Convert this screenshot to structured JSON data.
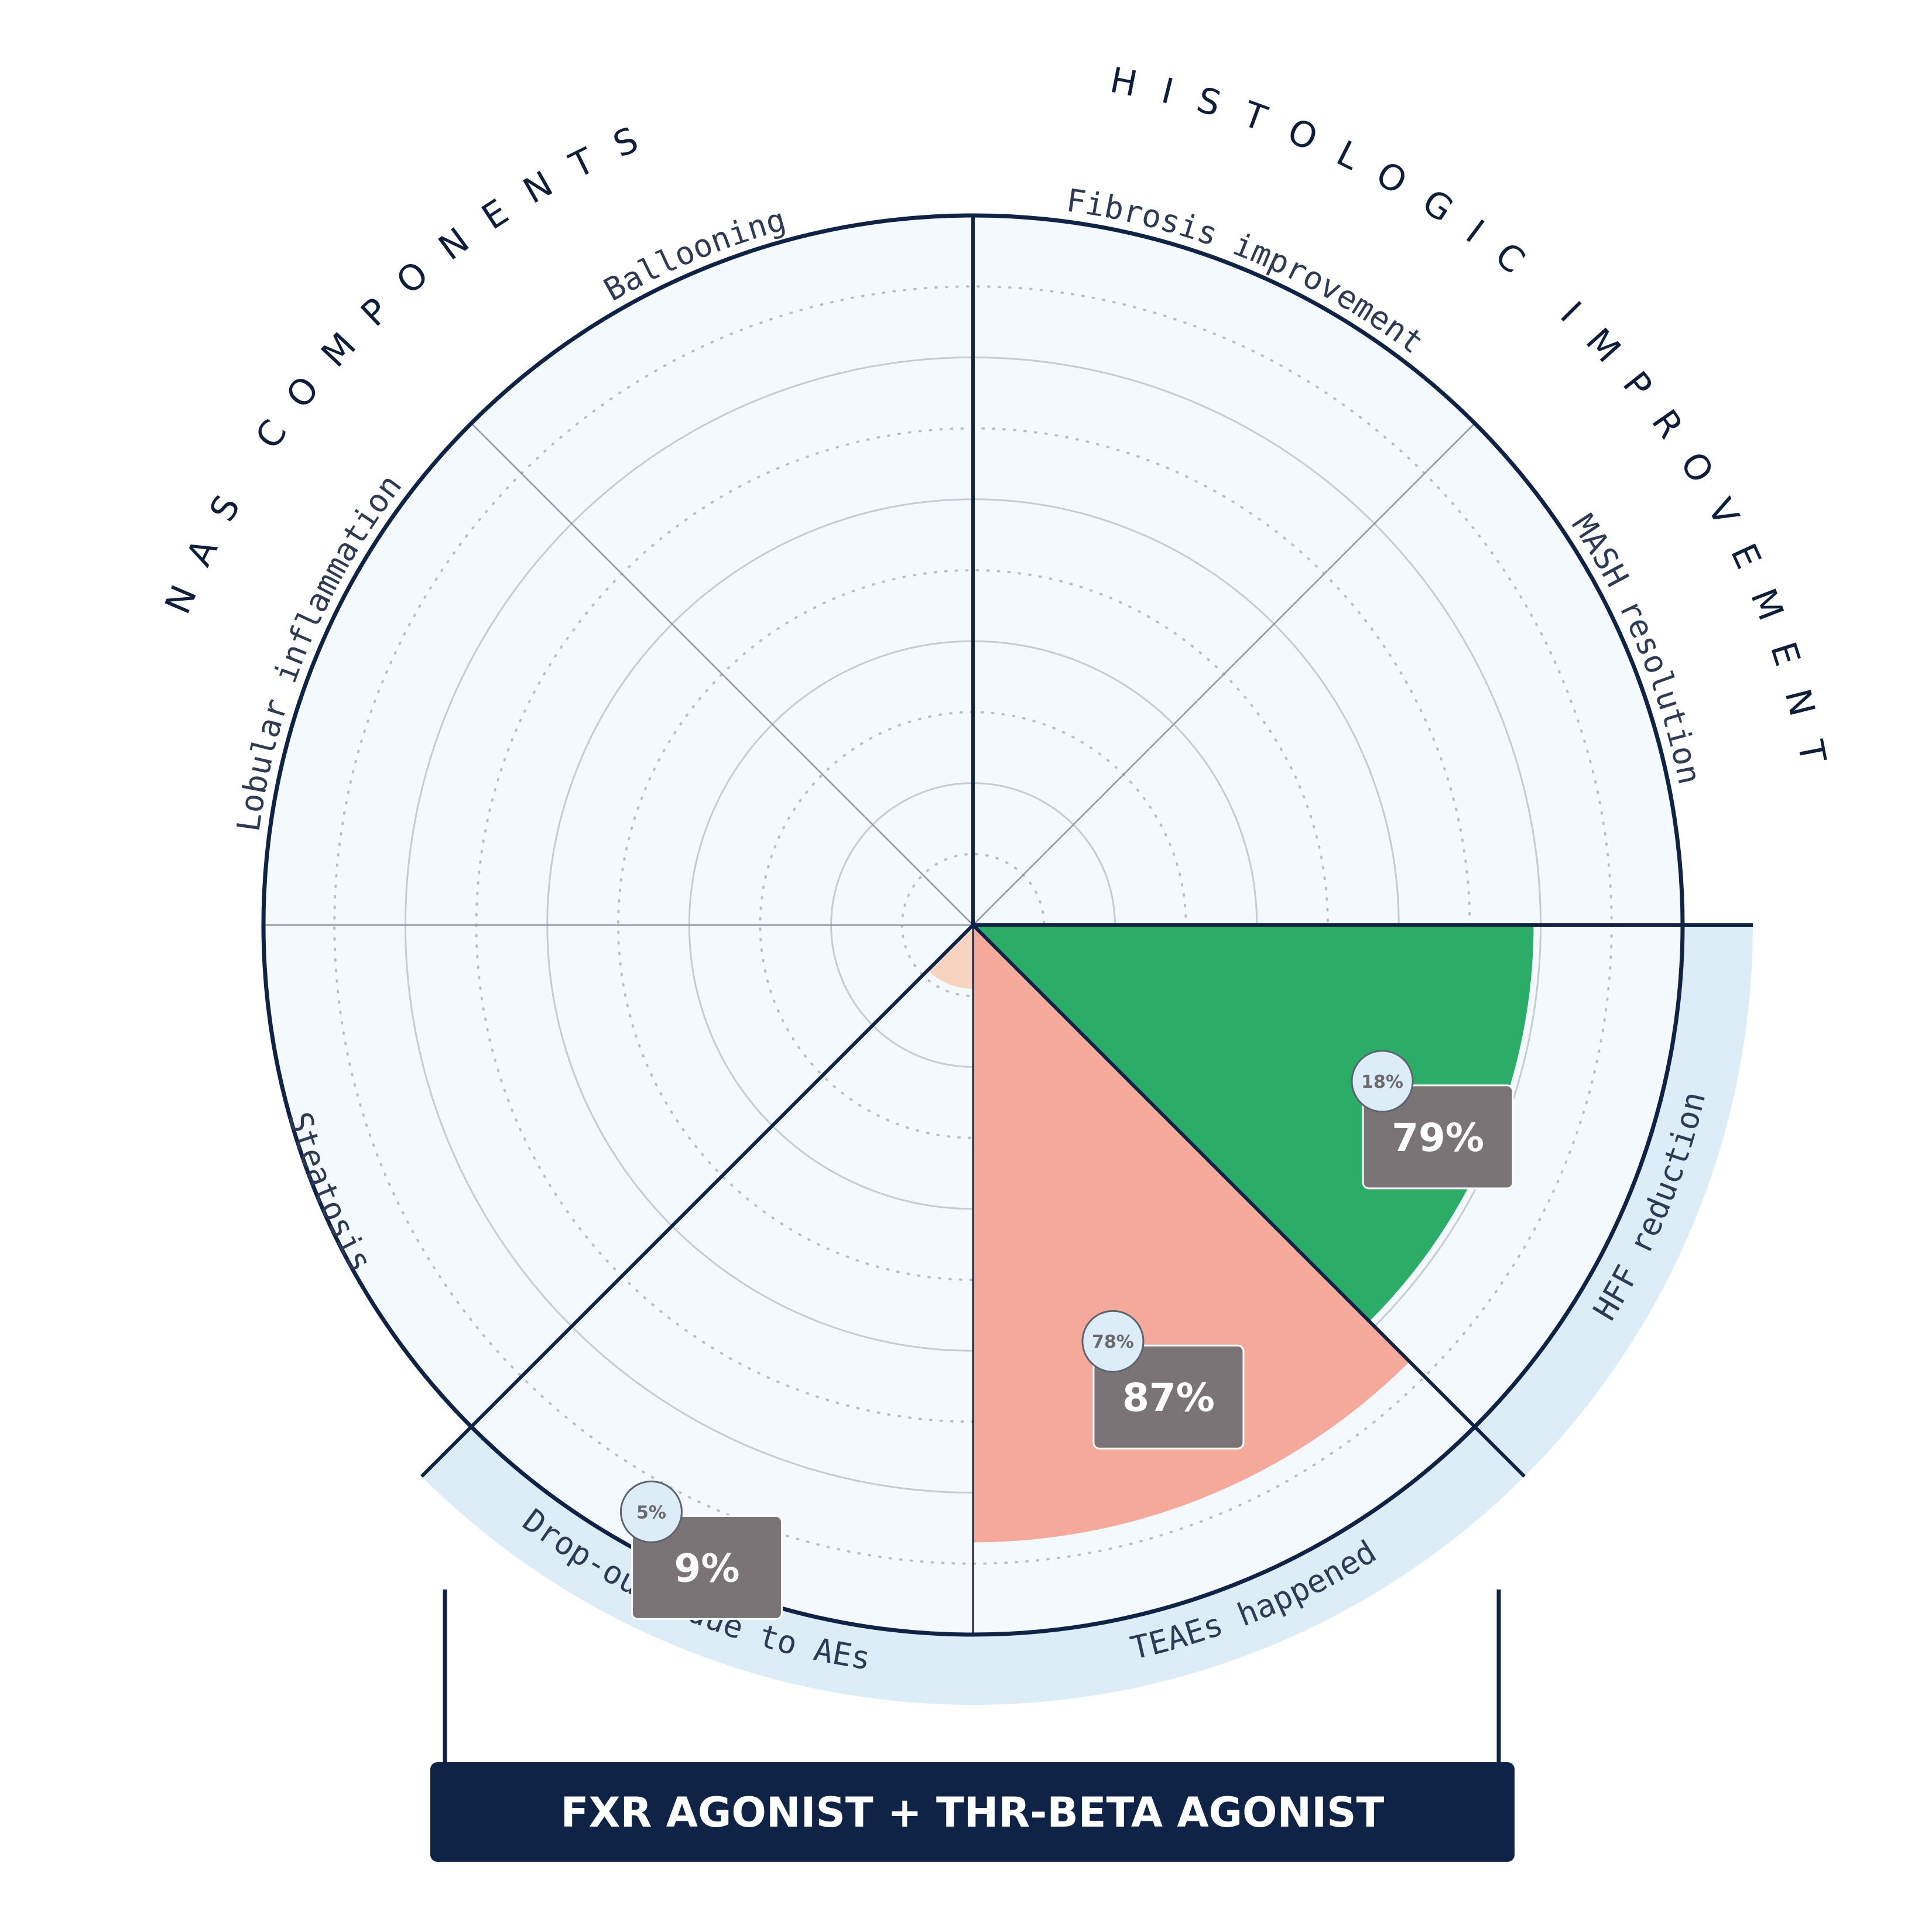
{
  "chart_data": {
    "type": "polar-area",
    "title": "FXR AGONIST + THR-BETA AGONIST",
    "rlim": [
      0,
      100
    ],
    "grid": true,
    "groups": [
      {
        "name": "HISTOLOGIC IMPROVEMENT",
        "categories": [
          "Fibrosis improvement",
          "MASH resolution"
        ]
      },
      {
        "name": "NAS COMPONENTS",
        "categories": [
          "Ballooning",
          "Lobular inflammation",
          "Steatosis"
        ]
      }
    ],
    "categories": [
      "Fibrosis improvement",
      "MASH resolution",
      "HFF reduction",
      "TEAEs happened",
      "Drop-outs due to AEs",
      "Steatosis",
      "Lobular inflammation",
      "Ballooning"
    ],
    "highlighted_categories": [
      "HFF reduction",
      "TEAEs happened",
      "Drop-outs due to AEs"
    ],
    "series": [
      {
        "values": [
          null,
          null,
          79,
          87,
          9,
          null,
          null,
          null
        ]
      },
      {
        "values": [
          null,
          null,
          18,
          78,
          5,
          null,
          null,
          null
        ]
      }
    ],
    "value_labels": [
      "79%",
      "87%",
      "9%"
    ],
    "reference_labels": [
      "18%",
      "78%",
      "5%"
    ],
    "colors": {
      "HFF reduction": "#2bad67",
      "TEAEs happened": "#f4a99a",
      "Drop-outs due to AEs": "#f8d3c0",
      "background": "#f4f9fd",
      "outline": "#0e2346",
      "highlight_band": "#dcedf7",
      "value_box": "#7a7477",
      "banner": "#0e2346"
    }
  }
}
